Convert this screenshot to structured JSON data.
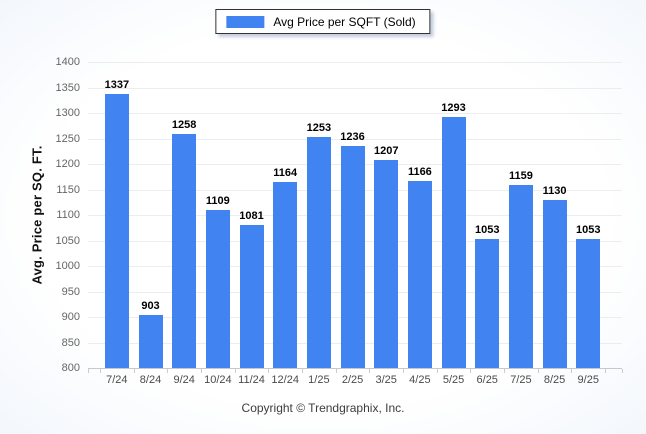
{
  "legend": {
    "label": "Avg Price per SQFT (Sold)"
  },
  "colors": {
    "bar": "#4183f0",
    "grid": "#ededed",
    "baseline": "#c8c8c8"
  },
  "footer": {
    "copyright": "Copyright © Trendgraphix, Inc."
  },
  "chart_data": {
    "type": "bar",
    "title": "",
    "xlabel": "",
    "ylabel": "Avg. Price per SQ. FT.",
    "categories": [
      "7/24",
      "8/24",
      "9/24",
      "10/24",
      "11/24",
      "12/24",
      "1/25",
      "2/25",
      "3/25",
      "4/25",
      "5/25",
      "6/25",
      "7/25",
      "8/25",
      "9/25"
    ],
    "series": [
      {
        "name": "Avg Price per SQFT (Sold)",
        "values": [
          1337,
          903,
          1258,
          1109,
          1081,
          1164,
          1253,
          1236,
          1207,
          1166,
          1293,
          1053,
          1159,
          1130,
          1053
        ]
      }
    ],
    "ylim": [
      800,
      1400
    ],
    "ytick_step": 50,
    "grid": true,
    "data_labels": true,
    "legend_position": "top-center"
  }
}
